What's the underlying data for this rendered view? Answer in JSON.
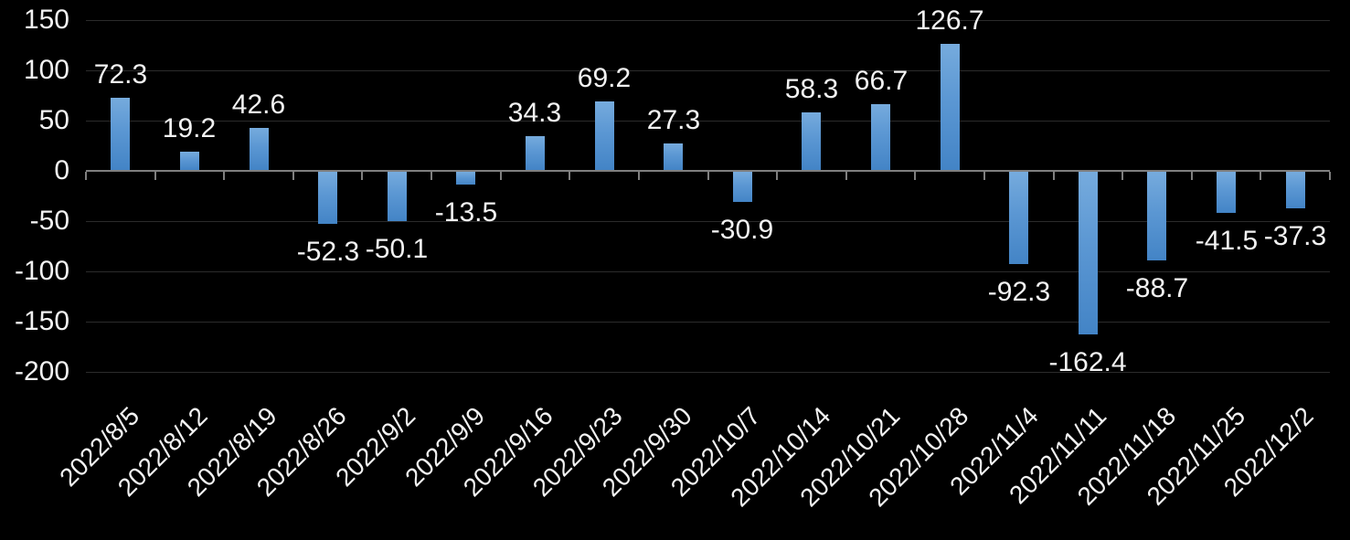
{
  "chart_data": {
    "type": "bar",
    "title": "",
    "xlabel": "",
    "ylabel": "",
    "legend": "none",
    "grid": true,
    "categories": [
      "2022/8/5",
      "2022/8/12",
      "2022/8/19",
      "2022/8/26",
      "2022/9/2",
      "2022/9/9",
      "2022/9/16",
      "2022/9/23",
      "2022/9/30",
      "2022/10/7",
      "2022/10/14",
      "2022/10/21",
      "2022/10/28",
      "2022/11/4",
      "2022/11/11",
      "2022/11/18",
      "2022/11/25",
      "2022/12/2"
    ],
    "values": [
      72.3,
      19.2,
      42.6,
      -52.3,
      -50.1,
      -13.5,
      34.3,
      69.2,
      27.3,
      -30.9,
      58.3,
      66.7,
      126.7,
      -92.3,
      -162.4,
      -88.7,
      -41.5,
      -37.3
    ],
    "data_labels": [
      "72.3",
      "19.2",
      "42.6",
      "-52.3",
      "-50.1",
      "-13.5",
      "34.3",
      "69.2",
      "27.3",
      "-30.9",
      "58.3",
      "66.7",
      "126.7",
      "-92.3",
      "-162.4",
      "-88.7",
      "-41.5",
      "-37.3"
    ],
    "y_tick_labels": [
      "150",
      "100",
      "50",
      "0",
      "-50",
      "-100",
      "-150",
      "-200"
    ],
    "y_tick_values": [
      150,
      100,
      50,
      0,
      -50,
      -100,
      -150,
      -200
    ],
    "ylim": [
      -200,
      150
    ],
    "y_tick_interval": 50,
    "colors": {
      "background": "#000000",
      "bar_top": "#76abdd",
      "bar_bottom": "#4384c6",
      "text": "#f2f2f2",
      "gridline": "#2b2b2b",
      "axis": "#7f7f7f"
    }
  }
}
